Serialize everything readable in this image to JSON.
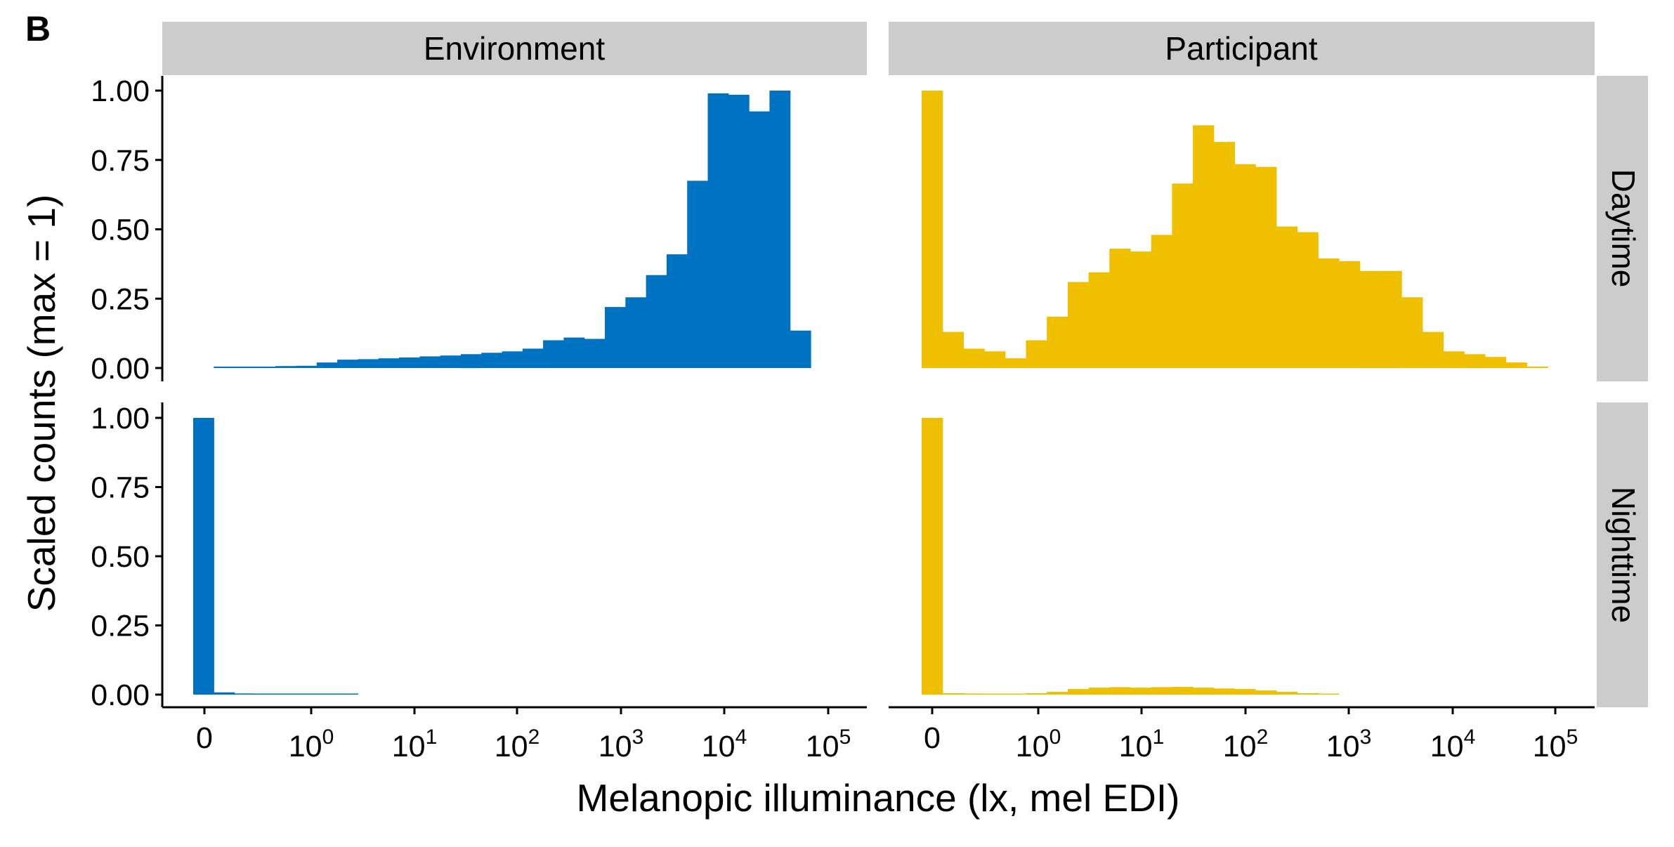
{
  "figure": {
    "panel_tag": "B",
    "xlabel": "Melanopic illuminance (lx, mel EDI)",
    "ylabel": "Scaled counts (max = 1)",
    "facet_columns": [
      "Environment",
      "Participant"
    ],
    "facet_rows": [
      "Daytime",
      "Nighttime"
    ],
    "y_ticks": [
      "0.00",
      "0.25",
      "0.50",
      "0.75",
      "1.00"
    ],
    "x_ticks": [
      {
        "base": "0",
        "exp": ""
      },
      {
        "base": "10",
        "exp": "0"
      },
      {
        "base": "10",
        "exp": "1"
      },
      {
        "base": "10",
        "exp": "2"
      },
      {
        "base": "10",
        "exp": "3"
      },
      {
        "base": "10",
        "exp": "4"
      },
      {
        "base": "10",
        "exp": "5"
      }
    ],
    "colors": {
      "environment": "#0072C2",
      "participant": "#EFC000",
      "strip": "#CCCCCC"
    }
  },
  "chart_data": {
    "type": "bar",
    "histogram": true,
    "x_scale": "log10(x+1)-style with 0 shown",
    "ylim": [
      0,
      1.05
    ],
    "y_ticks": [
      0,
      0.25,
      0.5,
      0.75,
      1.0
    ],
    "panels": [
      {
        "column": "Environment",
        "row": "Daytime",
        "color": "#0072C2",
        "values": [
          0,
          0.005,
          0.005,
          0.005,
          0.007,
          0.008,
          0.02,
          0.03,
          0.032,
          0.035,
          0.038,
          0.042,
          0.045,
          0.05,
          0.055,
          0.06,
          0.07,
          0.1,
          0.11,
          0.105,
          0.22,
          0.255,
          0.335,
          0.41,
          0.675,
          0.99,
          0.985,
          0.925,
          1.0,
          0.135
        ]
      },
      {
        "column": "Participant",
        "row": "Daytime",
        "color": "#EFC000",
        "values": [
          1.0,
          0.13,
          0.07,
          0.06,
          0.035,
          0.1,
          0.185,
          0.31,
          0.345,
          0.43,
          0.42,
          0.48,
          0.665,
          0.875,
          0.815,
          0.735,
          0.725,
          0.51,
          0.49,
          0.395,
          0.385,
          0.35,
          0.35,
          0.255,
          0.13,
          0.06,
          0.05,
          0.04,
          0.02,
          0.005
        ]
      },
      {
        "column": "Environment",
        "row": "Nighttime",
        "color": "#0072C2",
        "values": [
          1.0,
          0.008,
          0.004,
          0.003,
          0.002,
          0.002,
          0.002,
          0.001,
          0,
          0,
          0,
          0,
          0,
          0,
          0,
          0,
          0,
          0,
          0,
          0,
          0,
          0,
          0,
          0,
          0,
          0,
          0,
          0,
          0,
          0
        ]
      },
      {
        "column": "Participant",
        "row": "Nighttime",
        "color": "#EFC000",
        "values": [
          1.0,
          0.005,
          0.004,
          0.003,
          0.003,
          0.005,
          0.01,
          0.02,
          0.025,
          0.027,
          0.025,
          0.027,
          0.028,
          0.025,
          0.022,
          0.02,
          0.015,
          0.01,
          0.005,
          0.003,
          0,
          0,
          0,
          0,
          0,
          0,
          0,
          0,
          0,
          0
        ]
      }
    ]
  }
}
